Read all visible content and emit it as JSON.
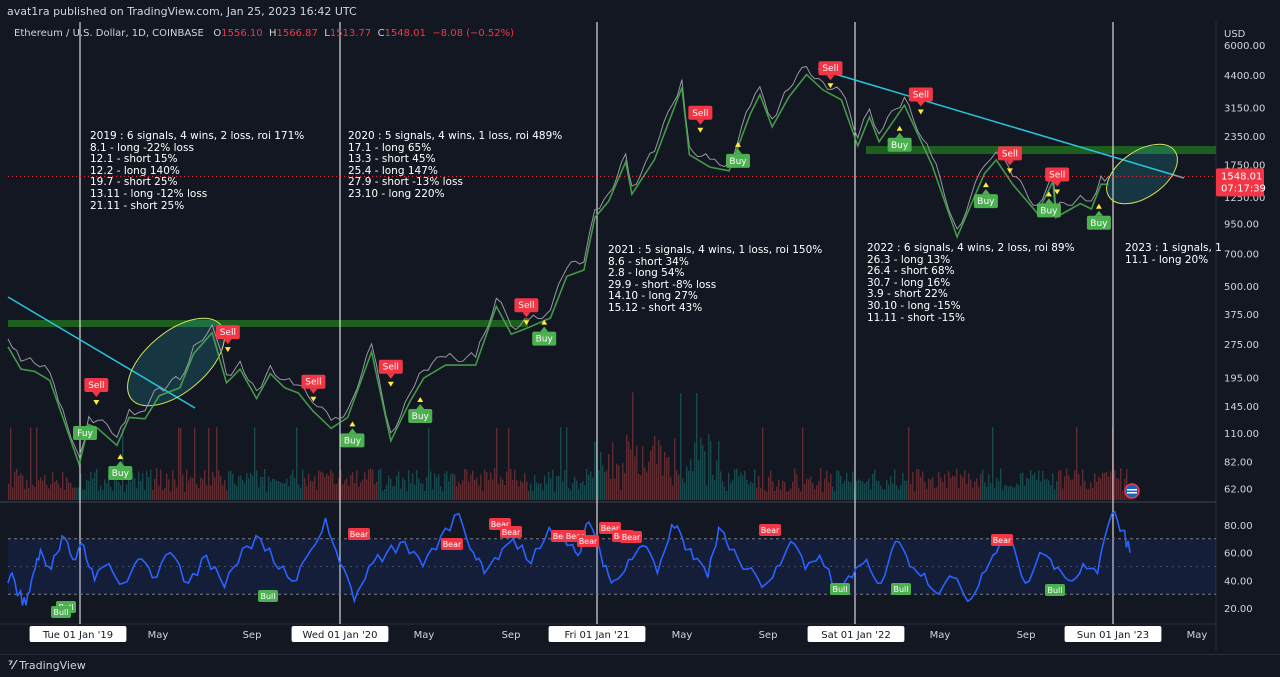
{
  "header": {
    "published": "avat1ra published on TradingView.com, Jan 25, 2023 16:42 UTC"
  },
  "symbol": {
    "name": "Ethereum / U.S. Dollar, 1D, COINBASE",
    "open_label": "O",
    "open": "1556.10",
    "high_label": "H",
    "high": "1566.87",
    "low_label": "L",
    "low": "1513.77",
    "close_label": "C",
    "close": "1548.01",
    "change": "−8.08 (−0.52%)"
  },
  "price_axis": {
    "currency": "USD",
    "last_price": "1548.01",
    "countdown": "07:17:39",
    "ticks": [
      "6000.00",
      "4400.00",
      "3150.00",
      "2350.00",
      "1750.00",
      "1250.00",
      "950.00",
      "700.00",
      "500.00",
      "375.00",
      "275.00",
      "195.00",
      "145.00",
      "110.00",
      "82.00",
      "62.00"
    ]
  },
  "rsi_axis": {
    "ticks": [
      "80.00",
      "60.00",
      "40.00",
      "20.00"
    ]
  },
  "time_axis": {
    "labels": [
      "Tue 01 Jan '19",
      "May",
      "Sep",
      "Wed 01 Jan '20",
      "May",
      "Sep",
      "Fri 01 Jan '21",
      "May",
      "Sep",
      "Sat 01 Jan '22",
      "May",
      "Sep",
      "Sun 01 Jan '23",
      "May"
    ],
    "highlighted": [
      true,
      false,
      false,
      true,
      false,
      false,
      true,
      false,
      false,
      true,
      false,
      false,
      true,
      false
    ]
  },
  "notes": [
    "2019 : 6 signals, 4 wins, 2 loss, roi 171%\n8.1 - long -22% loss\n12.1 - short 15%\n12.2 - long 140%\n19.7 - short 25%\n13.11 - long -12% loss\n21.11 - short 25%",
    "2020 : 5 signals, 4 wins, 1 loss, roi 489%\n17.1 - long 65%\n13.3 - short 45%\n25.4 - long 147%\n27.9 - short -13% loss\n23.10 - long 220%",
    "2021 : 5 signals, 4 wins, 1 loss, roi 150%\n8.6 - short 34%\n2.8 - long 54%\n29.9 - short -8% loss\n14.10 - long 27%\n15.12 - short 43%",
    "2022 : 6 signals, 4 wins, 2 loss, roi 89%\n26.3 - long 13%\n26.4 - short 68%\n30.7 - long 16%\n3.9 - short 22%\n30.10 - long -15%\n11.11 - short -15%",
    "2023 : 1 signals, 1\n11.1 - long 20%"
  ],
  "signal_labels": {
    "sell": "Sell",
    "buy": "Buy",
    "fuy": "Fuy",
    "bear": "Bear",
    "bull": "Bull"
  },
  "footer": {
    "brand": "TradingView"
  },
  "colors": {
    "bg": "#131722",
    "sell": "#f23645",
    "buy": "#4caf50",
    "trend": "#26c6da",
    "zone": "#1b5e20",
    "rsi": "#2962ff",
    "highlight": "#ffeb3b"
  },
  "chart_data": {
    "type": "line",
    "title": "Ethereum / U.S. Dollar, 1D, COINBASE",
    "scale": "log",
    "ylim": [
      55,
      7000
    ],
    "x_range": [
      "2018-09-01",
      "2023-07-01"
    ],
    "series": [
      {
        "points": [
          [
            "2018-09-01",
            290
          ],
          [
            "2018-09-20",
            230
          ],
          [
            "2018-10-10",
            225
          ],
          [
            "2018-11-01",
            205
          ],
          [
            "2018-11-20",
            140
          ],
          [
            "2018-12-14",
            86
          ],
          [
            "2018-12-28",
            130
          ],
          [
            "2019-01-10",
            125
          ],
          [
            "2019-02-07",
            105
          ],
          [
            "2019-02-25",
            140
          ],
          [
            "2019-03-20",
            138
          ],
          [
            "2019-04-10",
            175
          ],
          [
            "2019-05-10",
            190
          ],
          [
            "2019-05-30",
            270
          ],
          [
            "2019-06-26",
            335
          ],
          [
            "2019-07-17",
            200
          ],
          [
            "2019-08-06",
            230
          ],
          [
            "2019-08-30",
            170
          ],
          [
            "2019-09-19",
            220
          ],
          [
            "2019-10-10",
            190
          ],
          [
            "2019-10-30",
            180
          ],
          [
            "2019-11-20",
            150
          ],
          [
            "2019-12-17",
            125
          ],
          [
            "2020-01-10",
            140
          ],
          [
            "2020-02-14",
            275
          ],
          [
            "2020-03-13",
            110
          ],
          [
            "2020-04-10",
            165
          ],
          [
            "2020-04-30",
            210
          ],
          [
            "2020-06-01",
            240
          ],
          [
            "2020-07-15",
            240
          ],
          [
            "2020-08-14",
            440
          ],
          [
            "2020-09-05",
            330
          ],
          [
            "2020-10-01",
            355
          ],
          [
            "2020-11-01",
            390
          ],
          [
            "2020-11-25",
            600
          ],
          [
            "2020-12-20",
            640
          ],
          [
            "2021-01-05",
            1100
          ],
          [
            "2021-01-25",
            1300
          ],
          [
            "2021-02-19",
            1950
          ],
          [
            "2021-02-28",
            1400
          ],
          [
            "2021-04-02",
            2000
          ],
          [
            "2021-05-12",
            4200
          ],
          [
            "2021-05-23",
            2100
          ],
          [
            "2021-06-22",
            1850
          ],
          [
            "2021-07-20",
            1780
          ],
          [
            "2021-08-20",
            3200
          ],
          [
            "2021-09-03",
            3900
          ],
          [
            "2021-09-21",
            2800
          ],
          [
            "2021-10-15",
            3800
          ],
          [
            "2021-11-10",
            4800
          ],
          [
            "2021-12-04",
            4100
          ],
          [
            "2021-12-31",
            3700
          ],
          [
            "2022-01-24",
            2300
          ],
          [
            "2022-02-10",
            3100
          ],
          [
            "2022-02-24",
            2400
          ],
          [
            "2022-04-02",
            3500
          ],
          [
            "2022-05-12",
            1900
          ],
          [
            "2022-06-18",
            900
          ],
          [
            "2022-07-28",
            1730
          ],
          [
            "2022-08-14",
            1990
          ],
          [
            "2022-09-07",
            1550
          ],
          [
            "2022-10-13",
            1150
          ],
          [
            "2022-11-05",
            1600
          ],
          [
            "2022-11-09",
            1100
          ],
          [
            "2022-12-15",
            1270
          ],
          [
            "2022-12-31",
            1200
          ],
          [
            "2023-01-14",
            1550
          ],
          [
            "2023-01-25",
            1548
          ]
        ]
      }
    ],
    "sell_signals": [
      [
        "2019-01-08",
        145
      ],
      [
        "2019-07-19",
        250
      ],
      [
        "2019-11-21",
        150
      ],
      [
        "2020-03-13",
        175
      ],
      [
        "2020-09-27",
        330
      ],
      [
        "2021-06-08",
        2400
      ],
      [
        "2021-12-15",
        3800
      ],
      [
        "2022-04-26",
        2900
      ],
      [
        "2022-09-03",
        1580
      ],
      [
        "2022-11-11",
        1270
      ]
    ],
    "buy_signals": [
      [
        "2019-02-12",
        100
      ],
      [
        "2020-01-17",
        140
      ],
      [
        "2020-04-25",
        180
      ],
      [
        "2020-10-23",
        400
      ],
      [
        "2021-08-02",
        2500
      ],
      [
        "2022-03-26",
        2950
      ],
      [
        "2022-07-30",
        1650
      ],
      [
        "2022-10-30",
        1500
      ],
      [
        "2023-01-11",
        1320
      ]
    ],
    "rsi": {
      "levels": [
        70,
        30
      ],
      "ylim": [
        10,
        95
      ],
      "values": [
        [
          0,
          38
        ],
        [
          3,
          42
        ],
        [
          6,
          30
        ],
        [
          10,
          22
        ],
        [
          14,
          45
        ],
        [
          18,
          62
        ],
        [
          24,
          48
        ],
        [
          30,
          72
        ],
        [
          36,
          55
        ],
        [
          42,
          65
        ],
        [
          48,
          40
        ],
        [
          56,
          52
        ],
        [
          64,
          38
        ],
        [
          72,
          55
        ],
        [
          80,
          42
        ],
        [
          90,
          60
        ],
        [
          100,
          38
        ],
        [
          110,
          58
        ],
        [
          120,
          35
        ],
        [
          130,
          63
        ],
        [
          140,
          70
        ],
        [
          150,
          48
        ],
        [
          160,
          40
        ],
        [
          168,
          62
        ],
        [
          176,
          85
        ],
        [
          184,
          52
        ],
        [
          192,
          25
        ],
        [
          200,
          50
        ],
        [
          210,
          60
        ],
        [
          220,
          68
        ],
        [
          230,
          50
        ],
        [
          240,
          72
        ],
        [
          250,
          88
        ],
        [
          258,
          60
        ],
        [
          264,
          45
        ],
        [
          272,
          55
        ],
        [
          280,
          70
        ],
        [
          290,
          52
        ],
        [
          300,
          78
        ],
        [
          310,
          65
        ],
        [
          316,
          58
        ],
        [
          322,
          82
        ],
        [
          330,
          50
        ],
        [
          336,
          40
        ],
        [
          344,
          55
        ],
        [
          352,
          65
        ],
        [
          360,
          45
        ],
        [
          368,
          80
        ],
        [
          374,
          70
        ],
        [
          380,
          55
        ],
        [
          388,
          42
        ],
        [
          394,
          78
        ],
        [
          400,
          62
        ],
        [
          410,
          48
        ],
        [
          418,
          35
        ],
        [
          426,
          50
        ],
        [
          434,
          68
        ],
        [
          442,
          48
        ],
        [
          450,
          58
        ],
        [
          460,
          30
        ],
        [
          468,
          42
        ],
        [
          476,
          55
        ],
        [
          484,
          38
        ],
        [
          492,
          68
        ],
        [
          500,
          50
        ],
        [
          508,
          45
        ],
        [
          516,
          30
        ],
        [
          524,
          42
        ],
        [
          532,
          25
        ],
        [
          540,
          45
        ],
        [
          548,
          60
        ],
        [
          556,
          70
        ],
        [
          564,
          38
        ],
        [
          572,
          60
        ],
        [
          580,
          48
        ],
        [
          588,
          40
        ],
        [
          596,
          52
        ],
        [
          604,
          45
        ],
        [
          612,
          88
        ],
        [
          618,
          76
        ],
        [
          622,
          60
        ]
      ]
    }
  }
}
